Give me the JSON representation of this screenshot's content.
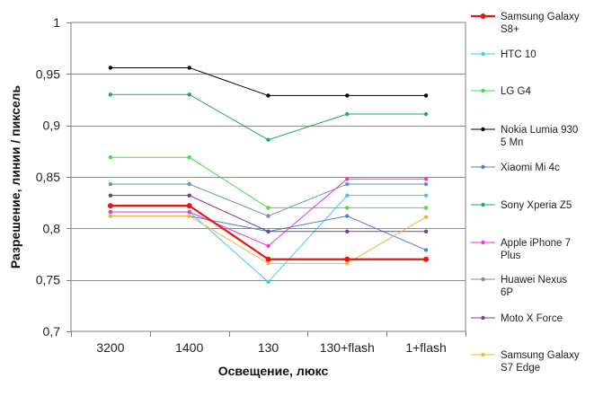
{
  "chart_data": {
    "type": "line",
    "title": "",
    "xlabel": "Освещение,  люкс",
    "ylabel": "Разрешение,  линии  / пиксель",
    "categories": [
      "3200",
      "1400",
      "130",
      "130+flash",
      "1+flash"
    ],
    "ylim": [
      0.7,
      1.0
    ],
    "yticks": [
      0.7,
      0.75,
      0.8,
      0.85,
      0.9,
      0.95,
      1
    ],
    "ytick_labels": [
      "0,7",
      "0,75",
      "0,8",
      "0,85",
      "0,9",
      "0,95",
      "1"
    ],
    "grid": "horizontal",
    "legend_position": "right",
    "series": [
      {
        "name": "Samsung Galaxy S8+",
        "legend_lines": [
          "Samsung Galaxy",
          "S8+"
        ],
        "color": "#e8170f",
        "width": 2.2,
        "values": [
          0.822,
          0.822,
          0.77,
          0.77,
          0.77
        ]
      },
      {
        "name": "HTC 10",
        "legend_lines": [
          "HTC 10"
        ],
        "color": "#48c6f0",
        "width": 1,
        "values": [
          0.816,
          0.816,
          0.748,
          0.832,
          0.832
        ]
      },
      {
        "name": "LG G4",
        "legend_lines": [
          "LG G4"
        ],
        "color": "#3ee03e",
        "width": 1,
        "values": [
          0.869,
          0.869,
          0.82,
          0.82,
          0.82
        ]
      },
      {
        "name": "Nokia Lumia 930 5 Мп",
        "legend_lines": [
          "Nokia Lumia 930",
          "5 Мп"
        ],
        "color": "#000000",
        "width": 1,
        "values": [
          0.956,
          0.956,
          0.929,
          0.929,
          0.929
        ]
      },
      {
        "name": "Xiaomi Mi 4c",
        "legend_lines": [
          "Xiaomi Mi 4c"
        ],
        "color": "#4f7fd4",
        "width": 1,
        "values": [
          0.812,
          0.812,
          0.797,
          0.812,
          0.779
        ]
      },
      {
        "name": "Sony Xperia Z5",
        "legend_lines": [
          "Sony Xperia Z5"
        ],
        "color": "#1fae55",
        "width": 1,
        "values": [
          0.93,
          0.93,
          0.886,
          0.911,
          0.911
        ]
      },
      {
        "name": "Apple iPhone 7 Plus",
        "legend_lines": [
          "Apple iPhone 7",
          "Plus"
        ],
        "color": "#e83ad8",
        "width": 1,
        "values": [
          0.816,
          0.816,
          0.783,
          0.848,
          0.848
        ]
      },
      {
        "name": "Huawei Nexus 6P",
        "legend_lines": [
          "Huawei Nexus",
          "6P"
        ],
        "color": "#6a8fb8",
        "width": 1,
        "values": [
          0.843,
          0.843,
          0.812,
          0.843,
          0.843
        ]
      },
      {
        "name": "Moto X Force",
        "legend_lines": [
          "Moto X Force"
        ],
        "color": "#7a3a9a",
        "width": 1,
        "values": [
          0.832,
          0.832,
          0.797,
          0.797,
          0.797
        ]
      },
      {
        "name": "Samsung Galaxy S7 Edge",
        "legend_lines": [
          "Samsung Galaxy",
          "S7 Edge"
        ],
        "color": "#f2b73a",
        "width": 1,
        "values": [
          0.812,
          0.812,
          0.766,
          0.766,
          0.811
        ]
      }
    ]
  }
}
